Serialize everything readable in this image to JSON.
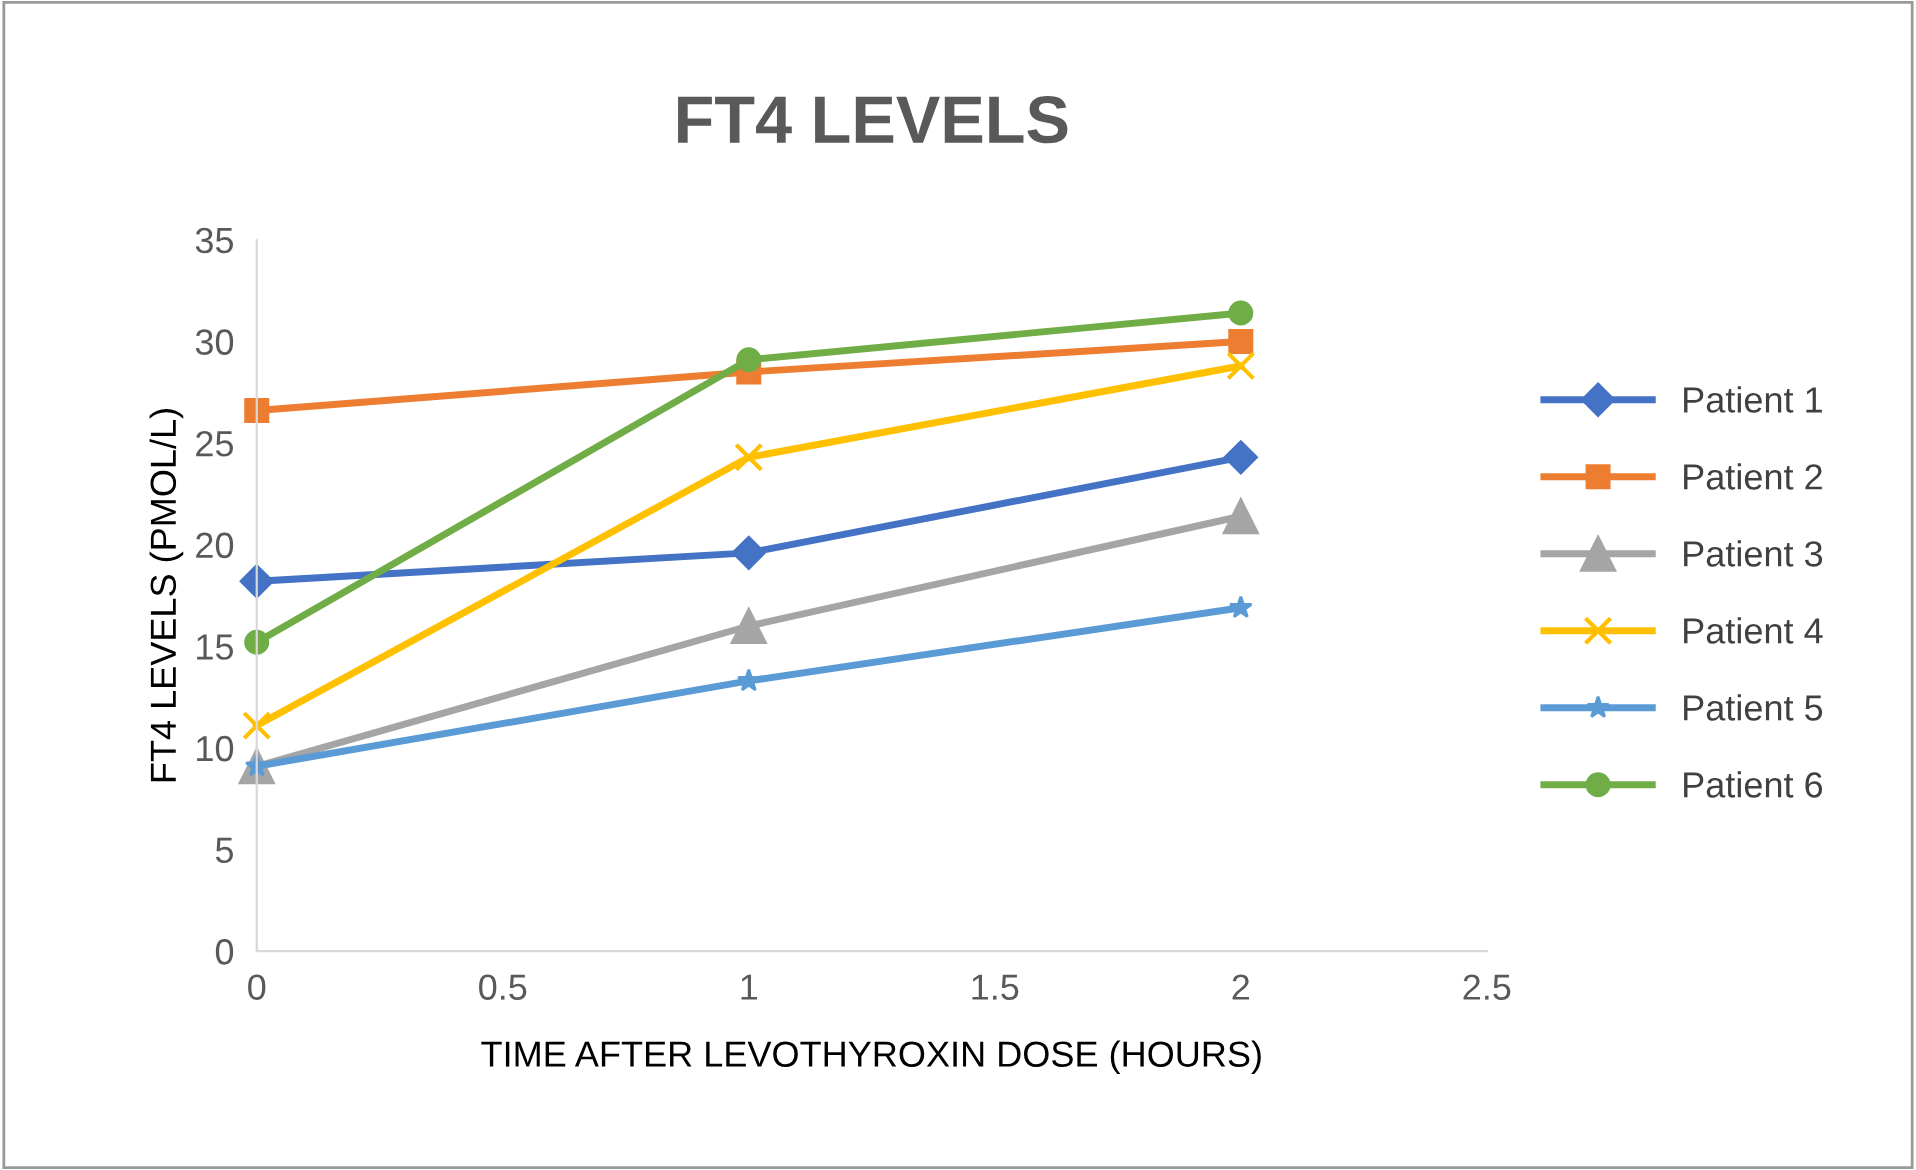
{
  "chart_data": {
    "type": "line",
    "title": "FT4 LEVELS",
    "xlabel": "TIME AFTER LEVOTHYROXIN DOSE (HOURS)",
    "ylabel": "FT4 LEVELS (PMOL/L)",
    "x": [
      0,
      1,
      2
    ],
    "xlim": [
      0,
      2.5
    ],
    "xticks": [
      0,
      0.5,
      1,
      1.5,
      2,
      2.5
    ],
    "ylim": [
      0,
      35
    ],
    "yticks": [
      0,
      5,
      10,
      15,
      20,
      25,
      30,
      35
    ],
    "grid": false,
    "legend": "right",
    "series": [
      {
        "name": "Patient 1",
        "color": "#4472c4",
        "marker": "diamond",
        "values": [
          18.2,
          19.6,
          24.3
        ]
      },
      {
        "name": "Patient 2",
        "color": "#ed7d31",
        "marker": "square",
        "values": [
          26.6,
          28.5,
          30.0
        ]
      },
      {
        "name": "Patient 3",
        "color": "#a5a5a5",
        "marker": "triangle",
        "values": [
          9.1,
          16.0,
          21.4
        ]
      },
      {
        "name": "Patient 4",
        "color": "#ffc000",
        "marker": "cross",
        "values": [
          11.1,
          24.3,
          28.8
        ]
      },
      {
        "name": "Patient 5",
        "color": "#5b9bd5",
        "marker": "star",
        "values": [
          9.1,
          13.3,
          16.9
        ]
      },
      {
        "name": "Patient 6",
        "color": "#70ad47",
        "marker": "circle",
        "values": [
          15.2,
          29.1,
          31.4
        ]
      }
    ]
  }
}
